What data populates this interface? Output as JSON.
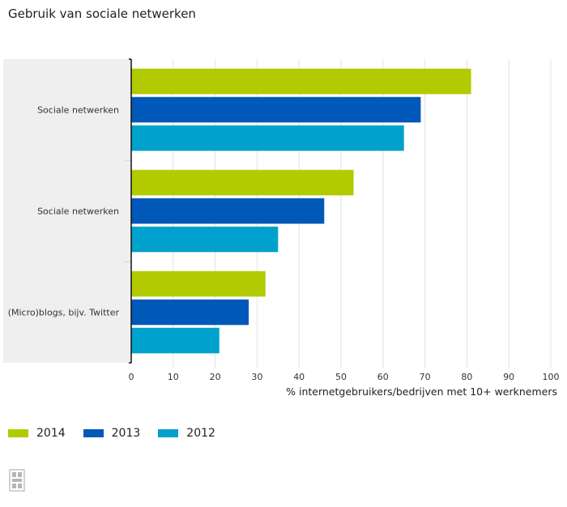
{
  "title": "Gebruik van sociale netwerken",
  "chart_data": {
    "type": "bar",
    "orientation": "horizontal",
    "title": "Gebruik van sociale netwerken",
    "categories": [
      "Sociale netwerken",
      "Sociale netwerken",
      "(Micro)blogs, bijv. Twitter"
    ],
    "series": [
      {
        "name": "2014",
        "color": "#b2cb00",
        "values": [
          81,
          53,
          32
        ]
      },
      {
        "name": "2013",
        "color": "#0058b8",
        "values": [
          69,
          46,
          28
        ]
      },
      {
        "name": "2012",
        "color": "#00a1cd",
        "values": [
          65,
          35,
          21
        ]
      }
    ],
    "xlabel": "% internetgebruikers/bedrijven met 10+ werknemers",
    "xlim": [
      0,
      100
    ],
    "xticks": [
      0,
      10,
      20,
      30,
      40,
      50,
      60,
      70,
      80,
      90,
      100
    ],
    "grid": true,
    "legend_position": "bottom-left"
  },
  "legend": [
    {
      "label": "2014",
      "color": "#b2cb00"
    },
    {
      "label": "2013",
      "color": "#0058b8"
    },
    {
      "label": "2012",
      "color": "#00a1cd"
    }
  ],
  "logo": {
    "icon": "cbs-logo-icon"
  }
}
